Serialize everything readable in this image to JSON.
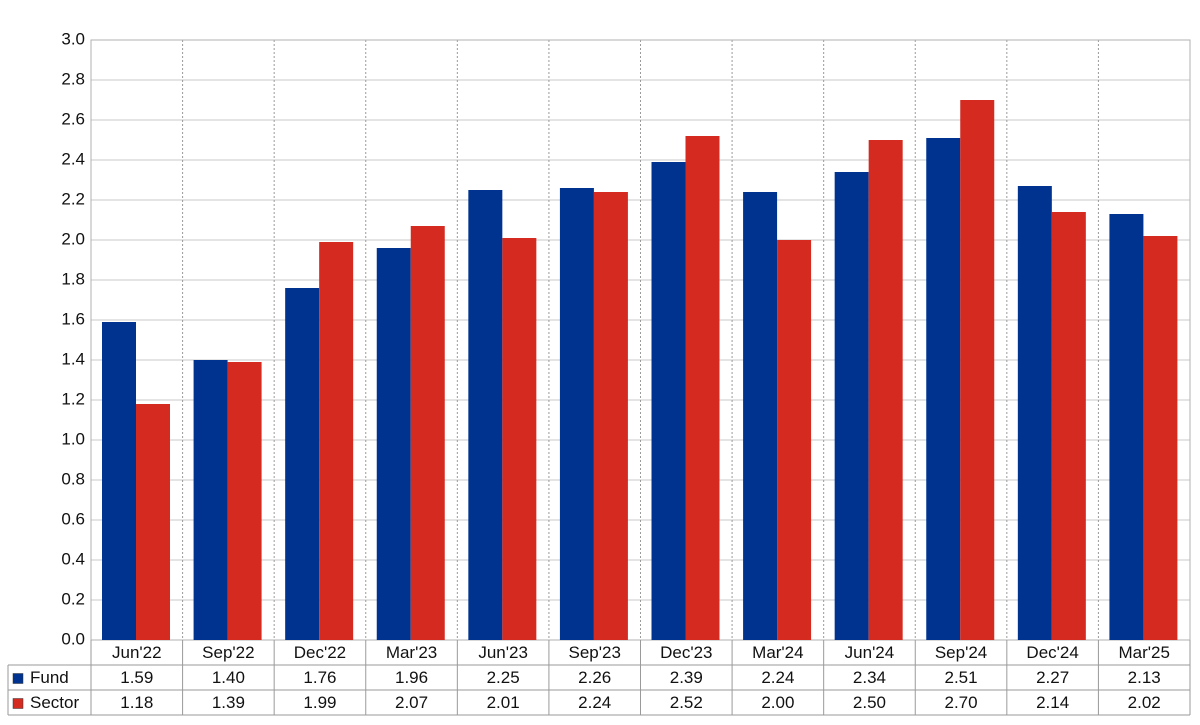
{
  "chart_data": {
    "type": "bar",
    "categories": [
      "Jun'22",
      "Sep'22",
      "Dec'22",
      "Mar'23",
      "Jun'23",
      "Sep'23",
      "Dec'23",
      "Mar'24",
      "Jun'24",
      "Sep'24",
      "Dec'24",
      "Mar'25"
    ],
    "series": [
      {
        "name": "Fund",
        "color": "#00338f",
        "values": [
          1.59,
          1.4,
          1.76,
          1.96,
          2.25,
          2.26,
          2.39,
          2.24,
          2.34,
          2.51,
          2.27,
          2.13
        ],
        "value_labels": [
          "1.59",
          "1.40",
          "1.76",
          "1.96",
          "2.25",
          "2.26",
          "2.39",
          "2.24",
          "2.34",
          "2.51",
          "2.27",
          "2.13"
        ]
      },
      {
        "name": "Sector",
        "color": "#d42a20",
        "values": [
          1.18,
          1.39,
          1.99,
          2.07,
          2.01,
          2.24,
          2.52,
          2.0,
          2.5,
          2.7,
          2.14,
          2.02
        ],
        "value_labels": [
          "1.18",
          "1.39",
          "1.99",
          "2.07",
          "2.01",
          "2.24",
          "2.52",
          "2.00",
          "2.50",
          "2.70",
          "2.14",
          "2.02"
        ]
      }
    ],
    "ylim": [
      0,
      3
    ],
    "yticks": [
      {
        "value": 0,
        "label": "0.0"
      },
      0.2,
      0.4,
      0.6,
      0.8,
      {
        "value": 1,
        "label": "1.0"
      },
      1.2,
      1.4,
      1.6,
      1.8,
      {
        "value": 2,
        "label": "2.0"
      },
      2.2,
      2.4,
      2.6,
      2.8,
      {
        "value": 3,
        "label": "3.0"
      }
    ],
    "grid": true
  }
}
